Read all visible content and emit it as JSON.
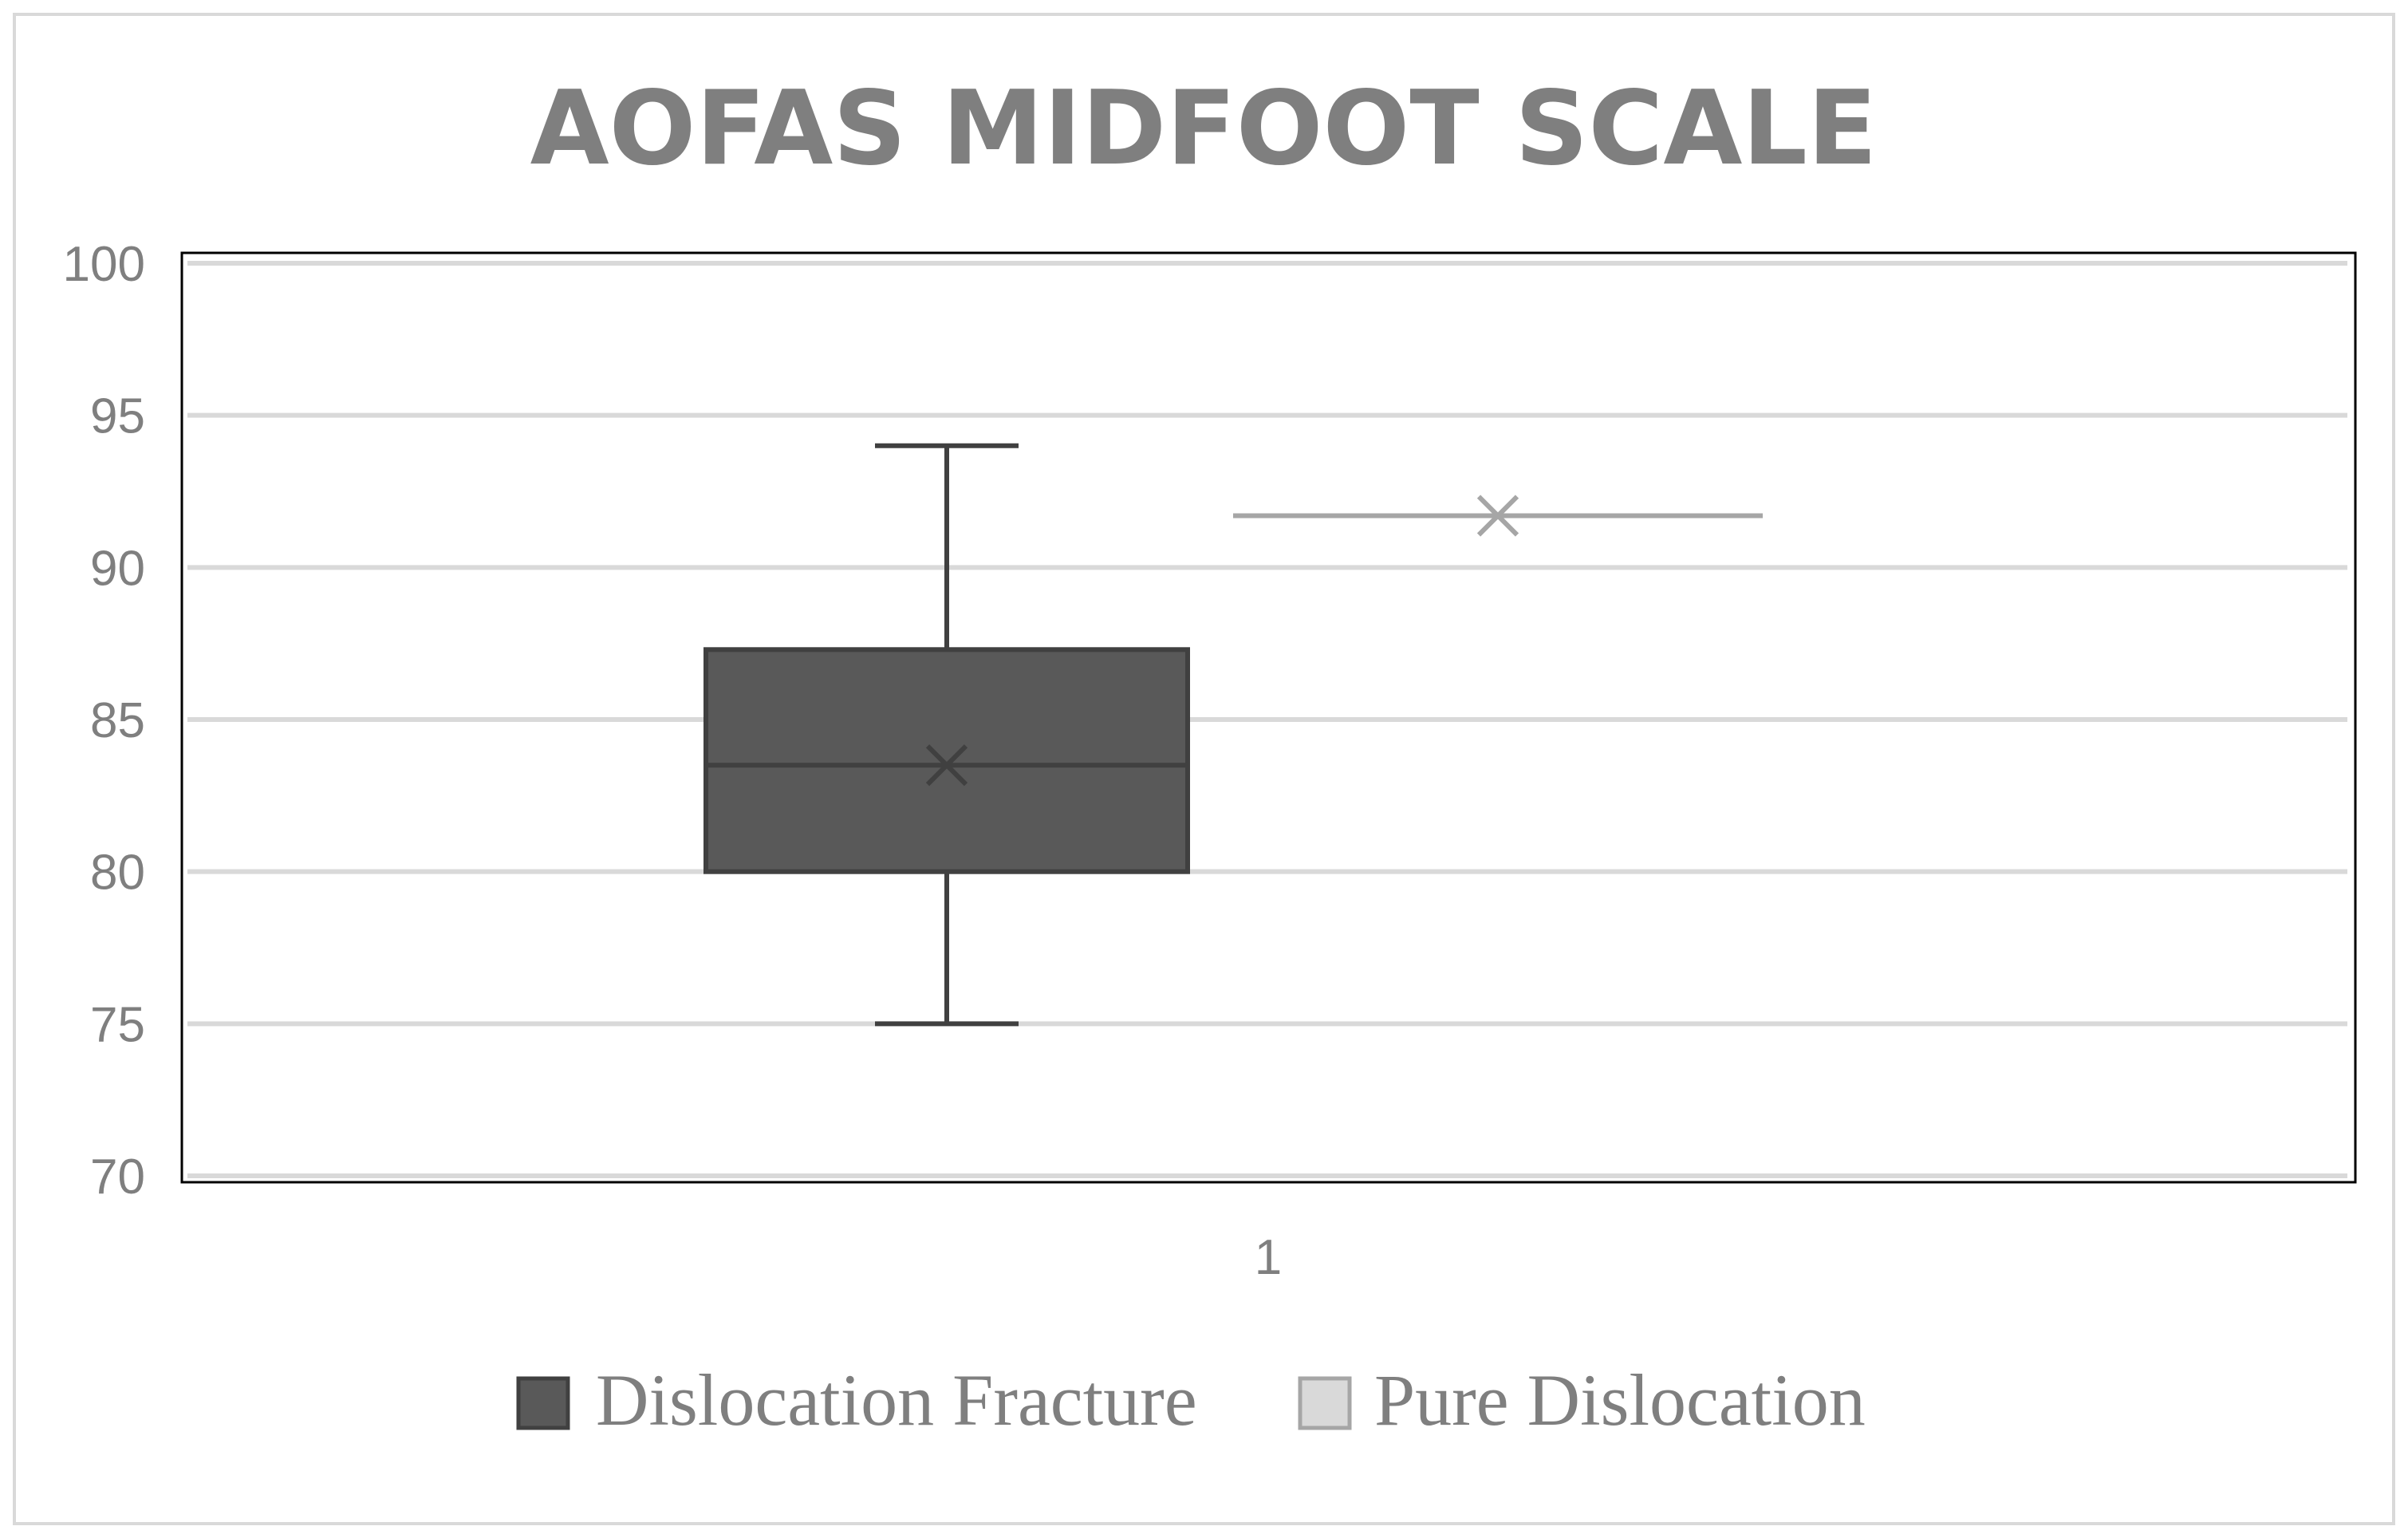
{
  "chart_data": {
    "type": "boxplot",
    "title": "AOFAS MIDFOOT SCALE",
    "categories": [
      "1"
    ],
    "ylim": [
      70,
      100
    ],
    "yticks": [
      70,
      75,
      80,
      85,
      90,
      95,
      100
    ],
    "grid": true,
    "legend_position": "bottom",
    "series": [
      {
        "name": "Dislocation Fracture",
        "color": "#595959",
        "min": 75,
        "q1": 80,
        "median": 83.5,
        "mean": 83.5,
        "q3": 87.3,
        "max": 94
      },
      {
        "name": "Pure Dislocation",
        "color": "#d9d9d9",
        "min": 91.7,
        "q1": 91.7,
        "median": 91.7,
        "mean": 91.7,
        "q3": 91.7,
        "max": 91.7
      }
    ]
  }
}
